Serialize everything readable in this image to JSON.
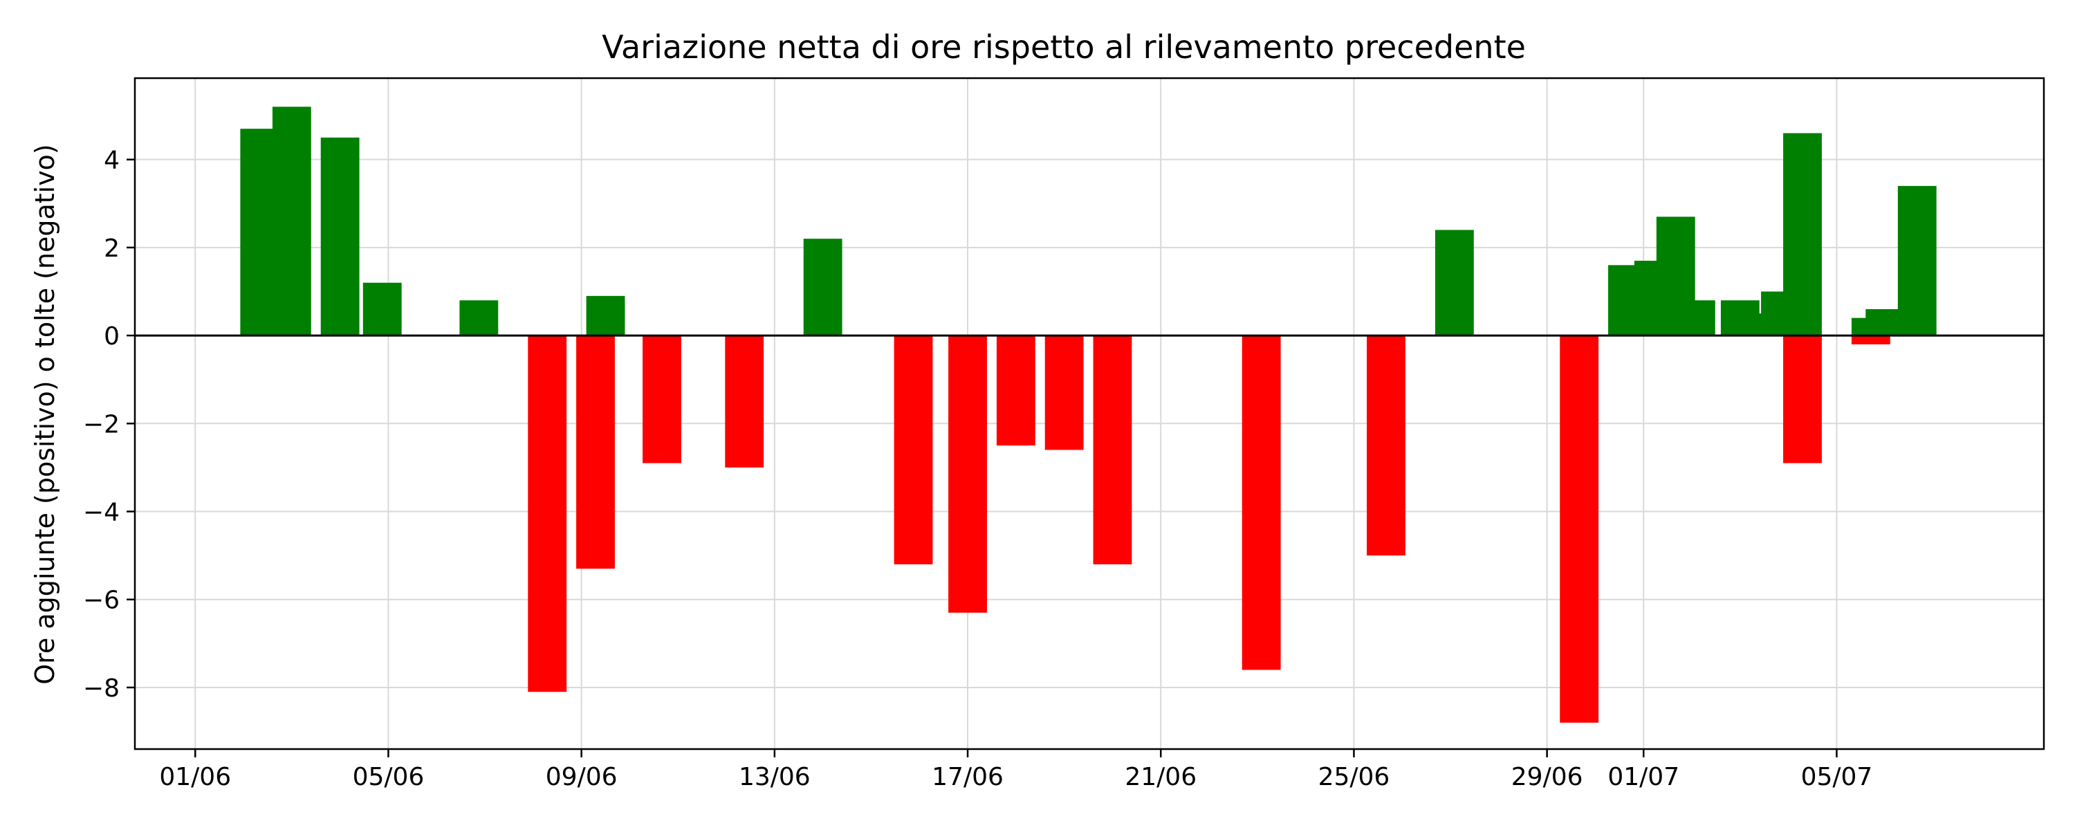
{
  "chart_data": {
    "type": "bar",
    "title": "Variazione netta di ore rispetto al rilevamento precedente",
    "xlabel": "",
    "ylabel": "Ore aggiunte (positivo) o tolte (negativo)",
    "x_type": "date",
    "x_tick_labels": [
      "01/06",
      "05/06",
      "09/06",
      "13/06",
      "17/06",
      "21/06",
      "25/06",
      "29/06",
      "01/07",
      "05/07"
    ],
    "x_tick_dates": [
      "2024-06-01",
      "2024-06-05",
      "2024-06-09",
      "2024-06-13",
      "2024-06-17",
      "2024-06-21",
      "2024-06-25",
      "2024-06-29",
      "2024-07-01",
      "2024-07-05"
    ],
    "xlim": [
      "2024-05-30 18:00",
      "2024-07-09 07:00"
    ],
    "ylim": [
      -9.4,
      5.85
    ],
    "y_ticks": [
      -8,
      -6,
      -4,
      -2,
      0,
      2,
      4
    ],
    "grid": true,
    "legend": "none",
    "colors": {
      "positive": "#008000",
      "negative": "#ff0000"
    },
    "bar_width_days": 0.8,
    "bars": [
      {
        "date": "2024-06-02 08:00",
        "value": 4.7
      },
      {
        "date": "2024-06-03 00:00",
        "value": 5.2
      },
      {
        "date": "2024-06-04 00:00",
        "value": 4.5
      },
      {
        "date": "2024-06-04 21:00",
        "value": 1.2
      },
      {
        "date": "2024-06-06 21:00",
        "value": 0.8
      },
      {
        "date": "2024-06-08 07:00",
        "value": -8.1
      },
      {
        "date": "2024-06-09 07:00",
        "value": -5.3
      },
      {
        "date": "2024-06-09 12:00",
        "value": 0.9
      },
      {
        "date": "2024-06-10 16:00",
        "value": -2.9
      },
      {
        "date": "2024-06-12 09:00",
        "value": -3.0
      },
      {
        "date": "2024-06-14 00:00",
        "value": 2.2
      },
      {
        "date": "2024-06-15 21:00",
        "value": -5.2
      },
      {
        "date": "2024-06-17 00:00",
        "value": -6.3
      },
      {
        "date": "2024-06-18 00:00",
        "value": -2.5
      },
      {
        "date": "2024-06-19 00:00",
        "value": -2.6
      },
      {
        "date": "2024-06-20 00:00",
        "value": -5.2
      },
      {
        "date": "2024-06-23 02:00",
        "value": -7.6
      },
      {
        "date": "2024-06-25 16:00",
        "value": -5.0
      },
      {
        "date": "2024-06-27 02:00",
        "value": 2.4
      },
      {
        "date": "2024-06-29 16:00",
        "value": -8.8
      },
      {
        "date": "2024-06-30 16:00",
        "value": 1.6
      },
      {
        "date": "2024-07-01 01:00",
        "value": 0.3
      },
      {
        "date": "2024-07-01 05:00",
        "value": 1.7
      },
      {
        "date": "2024-07-01 16:00",
        "value": 2.7
      },
      {
        "date": "2024-07-02 02:00",
        "value": 0.8
      },
      {
        "date": "2024-07-03 00:00",
        "value": 0.8
      },
      {
        "date": "2024-07-03 10:00",
        "value": 0.5
      },
      {
        "date": "2024-07-03 20:00",
        "value": 1.0
      },
      {
        "date": "2024-07-04 07:00",
        "value": 4.6
      },
      {
        "date": "2024-07-04 07:00",
        "value": -2.9
      },
      {
        "date": "2024-07-05 17:00",
        "value": 0.4
      },
      {
        "date": "2024-07-05 17:00",
        "value": -0.2
      },
      {
        "date": "2024-07-06 00:00",
        "value": 0.6
      },
      {
        "date": "2024-07-06 16:00",
        "value": 3.4
      }
    ]
  }
}
